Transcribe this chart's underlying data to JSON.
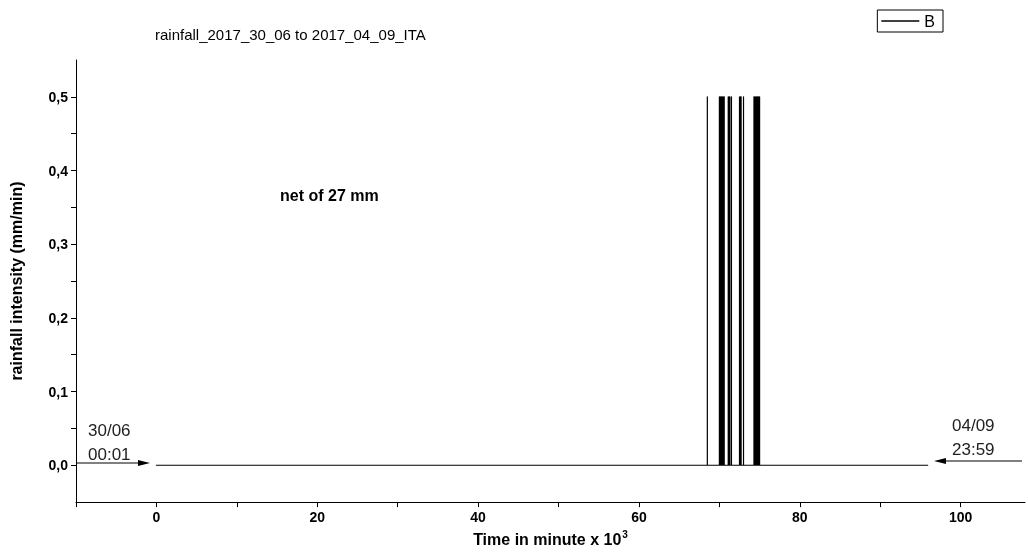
{
  "chart_data": {
    "type": "line",
    "title": "rainfall_2017_30_06 to 2017_04_09_ITA",
    "xlabel": "Time in minute x 10$^{3}$",
    "ylabel": "rainfall intensity (mm/min)",
    "annotations": [
      "net of 27 mm",
      "30/06\n00:01",
      "04/09\n23:59"
    ],
    "series": [
      {
        "name": "B",
        "color": "#000000",
        "x": [
          0,
          68.5,
          68.5,
          68.5,
          70.0,
          70.0,
          70.0,
          70.1,
          70.1,
          70.1,
          70.2,
          70.2,
          70.2,
          70.3,
          70.3,
          70.3,
          70.4,
          70.4,
          70.4,
          70.5,
          70.5,
          70.5,
          70.6,
          70.6,
          70.6,
          71.1,
          71.1,
          71.1,
          71.2,
          71.2,
          71.2,
          71.3,
          71.3,
          71.3,
          71.5,
          71.5,
          71.5,
          72.5,
          72.5,
          72.5,
          72.6,
          72.6,
          72.6,
          72.7,
          72.7,
          72.7,
          73.0,
          73.0,
          73.0,
          74.3,
          74.3,
          74.3,
          74.4,
          74.4,
          74.4,
          74.5,
          74.5,
          74.5,
          74.6,
          74.6,
          74.6,
          74.7,
          74.7,
          74.7,
          74.8,
          74.8,
          74.8,
          74.9,
          74.9,
          74.9,
          75.0,
          75.0,
          75.0,
          95.9
        ],
        "values": [
          0,
          0,
          0.5,
          0,
          0,
          0.5,
          0,
          0,
          0.5,
          0,
          0,
          0.5,
          0,
          0,
          0.5,
          0,
          0,
          0.5,
          0,
          0,
          0.5,
          0,
          0,
          0.5,
          0,
          0,
          0.5,
          0,
          0,
          0.5,
          0,
          0,
          0.5,
          0,
          0,
          0.5,
          0,
          0,
          0.5,
          0,
          0,
          0.5,
          0,
          0,
          0.5,
          0,
          0,
          0.5,
          0,
          0,
          0.5,
          0,
          0,
          0.5,
          0,
          0,
          0.5,
          0,
          0,
          0.5,
          0,
          0,
          0.5,
          0,
          0,
          0.5,
          0,
          0,
          0.5,
          0,
          0,
          0.5,
          0,
          0
        ]
      }
    ],
    "xlim": [
      -10,
      108
    ],
    "ylim": [
      -0.05,
      0.55
    ],
    "xticks": [
      {
        "value": -10,
        "label": null
      },
      0,
      {
        "value": 10,
        "label": null
      },
      20,
      {
        "value": 30,
        "label": null
      },
      40,
      {
        "value": 50,
        "label": null
      },
      60,
      {
        "value": 70,
        "label": null
      },
      80,
      {
        "value": 90,
        "label": null
      },
      100
    ],
    "yticks": [
      {
        "value": 0,
        "label": "0,0"
      },
      {
        "value": 0.05,
        "label": null
      },
      {
        "value": 0.1,
        "label": "0,1"
      },
      {
        "value": 0.15,
        "label": null
      },
      {
        "value": 0.2,
        "label": "0,2"
      },
      {
        "value": 0.25,
        "label": null
      },
      {
        "value": 0.3,
        "label": "0,3"
      },
      {
        "value": 0.35,
        "label": null
      },
      {
        "value": 0.4,
        "label": "0,4"
      },
      {
        "value": 0.45,
        "label": null
      },
      {
        "value": 0.5,
        "label": "0,5"
      }
    ],
    "grid": false,
    "legend": "top right",
    "marker": "none",
    "line_style": "solid"
  }
}
